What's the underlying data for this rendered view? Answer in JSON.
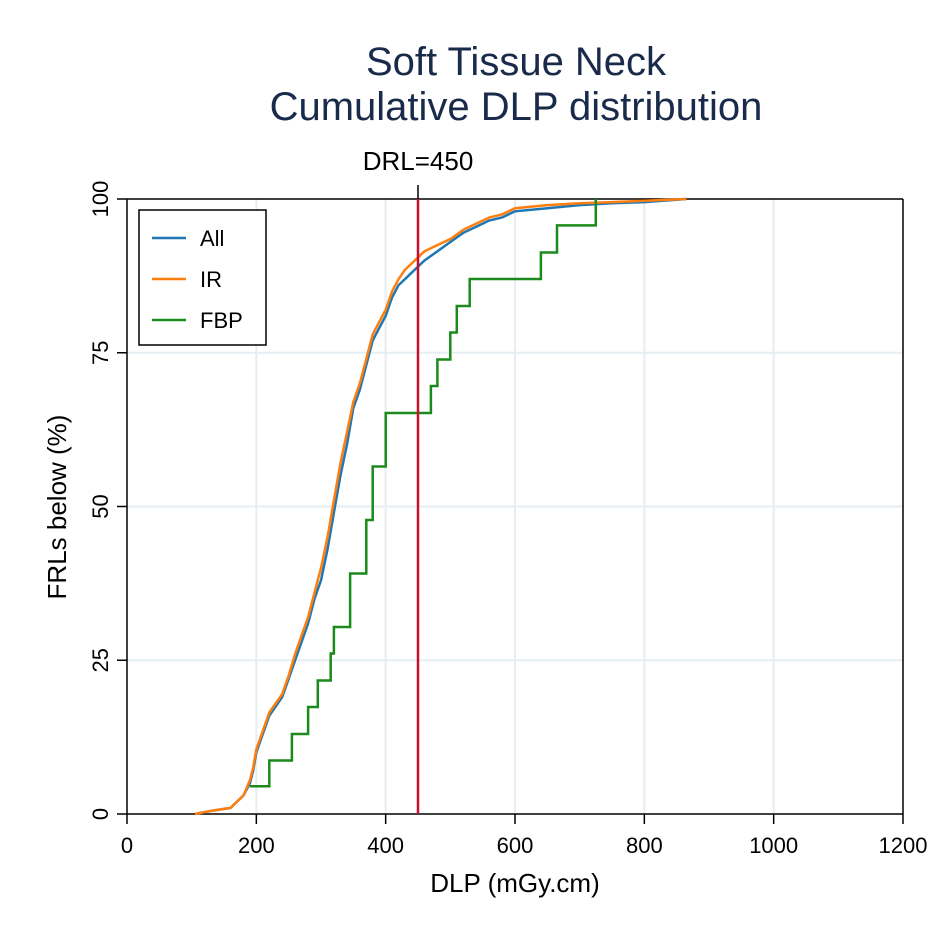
{
  "chart_data": {
    "type": "line",
    "title": "Soft Tissue Neck",
    "subtitle": "Cumulative DLP distribution",
    "xlabel": "DLP (mGy.cm)",
    "ylabel": "FRLs below (%)",
    "xlim": [
      0,
      1200
    ],
    "ylim": [
      0,
      100
    ],
    "xticks": [
      0,
      200,
      400,
      600,
      800,
      1000,
      1200
    ],
    "yticks": [
      0,
      25,
      50,
      75,
      100
    ],
    "grid": true,
    "legend_position": "top-left",
    "annotation": {
      "label": "DRL=450",
      "x": 450,
      "color": "#c8102e"
    },
    "series": [
      {
        "name": "All",
        "color": "#1f77b4",
        "step": false,
        "x": [
          105,
          130,
          160,
          180,
          190,
          195,
          200,
          210,
          220,
          240,
          250,
          260,
          270,
          280,
          290,
          300,
          310,
          320,
          330,
          340,
          350,
          360,
          370,
          380,
          390,
          400,
          410,
          420,
          430,
          440,
          450,
          460,
          480,
          500,
          520,
          540,
          560,
          580,
          600,
          650,
          700,
          750,
          800,
          865
        ],
        "y": [
          0,
          0.5,
          1,
          3,
          5,
          7,
          10,
          13,
          16,
          19,
          22,
          25,
          28,
          31,
          35,
          38,
          43,
          49,
          55,
          60,
          66,
          69,
          73,
          77,
          79,
          81,
          84,
          86,
          87,
          88,
          89,
          90,
          91.5,
          93,
          94.5,
          95.5,
          96.5,
          97,
          98,
          98.5,
          99,
          99.3,
          99.5,
          100
        ]
      },
      {
        "name": "IR",
        "color": "#ff7f0e",
        "step": false,
        "x": [
          105,
          130,
          160,
          180,
          190,
          195,
          200,
          210,
          220,
          240,
          250,
          260,
          270,
          280,
          290,
          300,
          310,
          320,
          330,
          340,
          350,
          360,
          370,
          380,
          390,
          400,
          410,
          420,
          430,
          440,
          450,
          460,
          480,
          500,
          520,
          540,
          560,
          580,
          600,
          650,
          700,
          750,
          800,
          865
        ],
        "y": [
          0,
          0.5,
          1,
          3,
          5.5,
          7.5,
          10.5,
          13.5,
          16.5,
          19.5,
          22.5,
          26,
          29,
          32,
          36,
          40,
          45,
          51,
          57,
          62,
          67,
          70,
          74,
          78,
          80,
          82,
          85,
          87,
          88.5,
          89.5,
          90.5,
          91.5,
          92.5,
          93.5,
          95,
          96,
          97,
          97.5,
          98.5,
          99,
          99.3,
          99.5,
          99.7,
          100
        ]
      },
      {
        "name": "FBP",
        "color": "#1a8a1a",
        "step": true,
        "x": [
          190,
          220,
          255,
          280,
          295,
          315,
          320,
          345,
          370,
          380,
          400,
          470,
          480,
          500,
          510,
          530,
          610,
          640,
          665,
          725
        ],
        "y": [
          4.5,
          8.7,
          13,
          17.4,
          21.7,
          26.1,
          30.4,
          39.1,
          47.8,
          56.5,
          65.2,
          69.6,
          73.9,
          78.3,
          82.6,
          87,
          87,
          91.3,
          95.7,
          100
        ]
      }
    ]
  }
}
